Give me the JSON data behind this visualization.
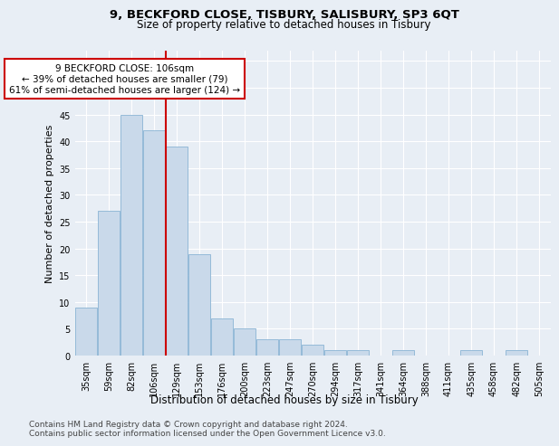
{
  "title1": "9, BECKFORD CLOSE, TISBURY, SALISBURY, SP3 6QT",
  "title2": "Size of property relative to detached houses in Tisbury",
  "xlabel": "Distribution of detached houses by size in Tisbury",
  "ylabel": "Number of detached properties",
  "categories": [
    "35sqm",
    "59sqm",
    "82sqm",
    "106sqm",
    "129sqm",
    "153sqm",
    "176sqm",
    "200sqm",
    "223sqm",
    "247sqm",
    "270sqm",
    "294sqm",
    "317sqm",
    "341sqm",
    "364sqm",
    "388sqm",
    "411sqm",
    "435sqm",
    "458sqm",
    "482sqm",
    "505sqm"
  ],
  "values": [
    9,
    27,
    45,
    42,
    39,
    19,
    7,
    5,
    3,
    3,
    2,
    1,
    1,
    0,
    1,
    0,
    0,
    1,
    0,
    1,
    0
  ],
  "bar_color": "#c9d9ea",
  "bar_edge_color": "#8ab4d4",
  "highlight_index": 3,
  "highlight_line_color": "#cc0000",
  "ylim": [
    0,
    57
  ],
  "yticks": [
    0,
    5,
    10,
    15,
    20,
    25,
    30,
    35,
    40,
    45,
    50,
    55
  ],
  "annotation_line1": "9 BECKFORD CLOSE: 106sqm",
  "annotation_line2": "← 39% of detached houses are smaller (79)",
  "annotation_line3": "61% of semi-detached houses are larger (124) →",
  "annotation_box_color": "#ffffff",
  "annotation_box_edge_color": "#cc0000",
  "footer1": "Contains HM Land Registry data © Crown copyright and database right 2024.",
  "footer2": "Contains public sector information licensed under the Open Government Licence v3.0.",
  "background_color": "#e8eef5",
  "plot_background_color": "#e8eef5",
  "grid_color": "#ffffff",
  "title1_fontsize": 9.5,
  "title2_fontsize": 8.5,
  "xlabel_fontsize": 8.5,
  "ylabel_fontsize": 8,
  "tick_fontsize": 7,
  "annotation_fontsize": 7.5,
  "footer_fontsize": 6.5
}
